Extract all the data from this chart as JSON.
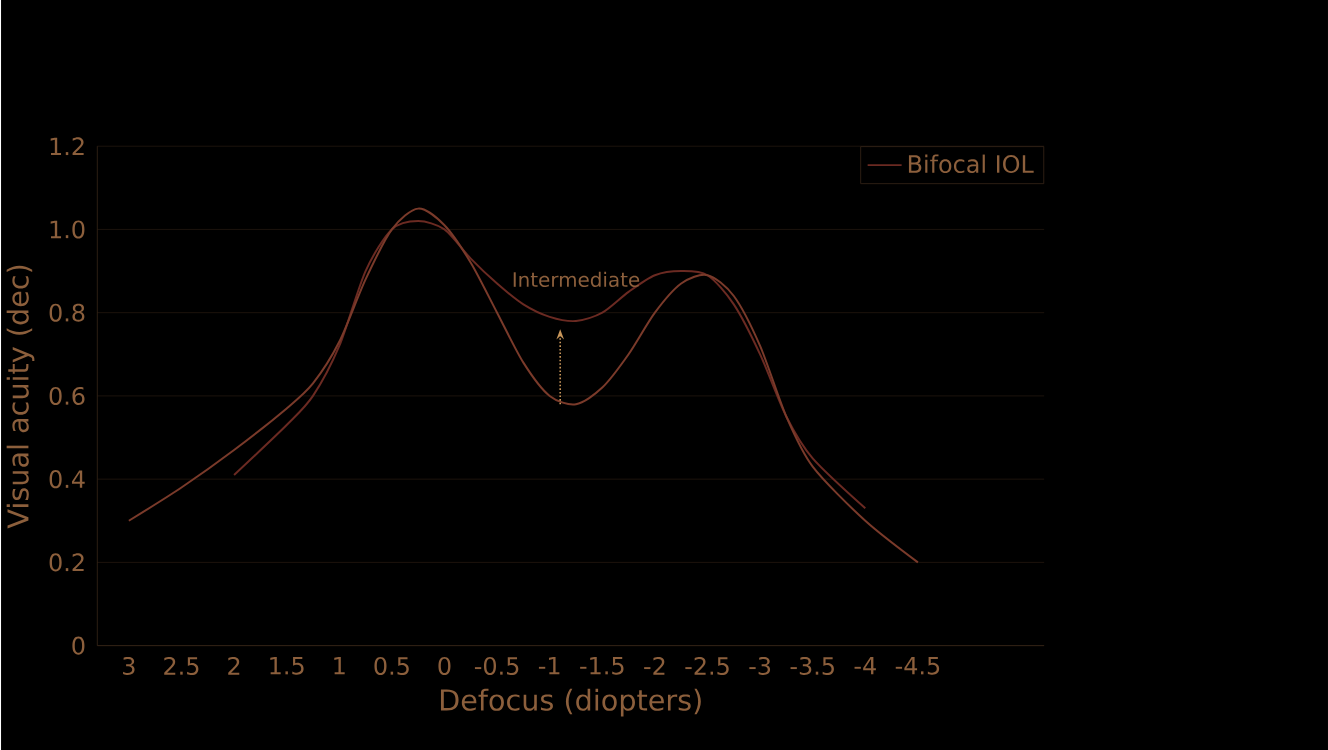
{
  "chart_data": {
    "type": "line",
    "xlabel": "Defocus (diopters)",
    "ylabel": "Visual acuity (dec)",
    "xlim": [
      3.3,
      -5.7
    ],
    "ylim": [
      0,
      1.2
    ],
    "xticks": [
      3,
      2.5,
      2,
      1.5,
      1,
      0.5,
      0,
      -0.5,
      -1,
      -1.5,
      -2,
      -2.5,
      -3,
      -3.5,
      -4,
      -4.5
    ],
    "yticks": [
      0,
      0.2,
      0.4,
      0.6,
      0.8,
      {
        "value": 1.0,
        "label": "1.0"
      },
      1.2
    ],
    "grid": "y",
    "legend": "top right",
    "annotations": [
      {
        "text": "Intermediate",
        "x": -1.25,
        "y": 0.78
      }
    ],
    "series": [
      {
        "color": "#6b2a22",
        "x": [
          2,
          1.5,
          1.25,
          1,
          0.75,
          0.5,
          0.25,
          0,
          -0.25,
          -0.5,
          -0.75,
          -1,
          -1.25,
          -1.5,
          -1.75,
          -2,
          -2.25,
          -2.5,
          -2.75,
          -3,
          -3.25,
          -3.5,
          -4
        ],
        "values": [
          0.41,
          0.53,
          0.6,
          0.72,
          0.9,
          1.0,
          1.02,
          1.0,
          0.93,
          0.87,
          0.82,
          0.79,
          0.78,
          0.8,
          0.85,
          0.89,
          0.9,
          0.89,
          0.82,
          0.7,
          0.55,
          0.45,
          0.33
        ]
      },
      {
        "name": "Bifocal IOL",
        "color": "#7a3a2a",
        "x": [
          3,
          2.5,
          2,
          1.5,
          1.25,
          1,
          0.75,
          0.5,
          0.25,
          0,
          -0.25,
          -0.5,
          -0.75,
          -1,
          -1.25,
          -1.5,
          -1.75,
          -2,
          -2.25,
          -2.5,
          -2.75,
          -3,
          -3.25,
          -3.5,
          -4,
          -4.5
        ],
        "values": [
          0.3,
          0.38,
          0.47,
          0.57,
          0.63,
          0.73,
          0.88,
          1.0,
          1.05,
          1.01,
          0.92,
          0.8,
          0.68,
          0.6,
          0.58,
          0.62,
          0.7,
          0.8,
          0.87,
          0.89,
          0.84,
          0.72,
          0.55,
          0.43,
          0.3,
          0.2
        ]
      }
    ]
  }
}
